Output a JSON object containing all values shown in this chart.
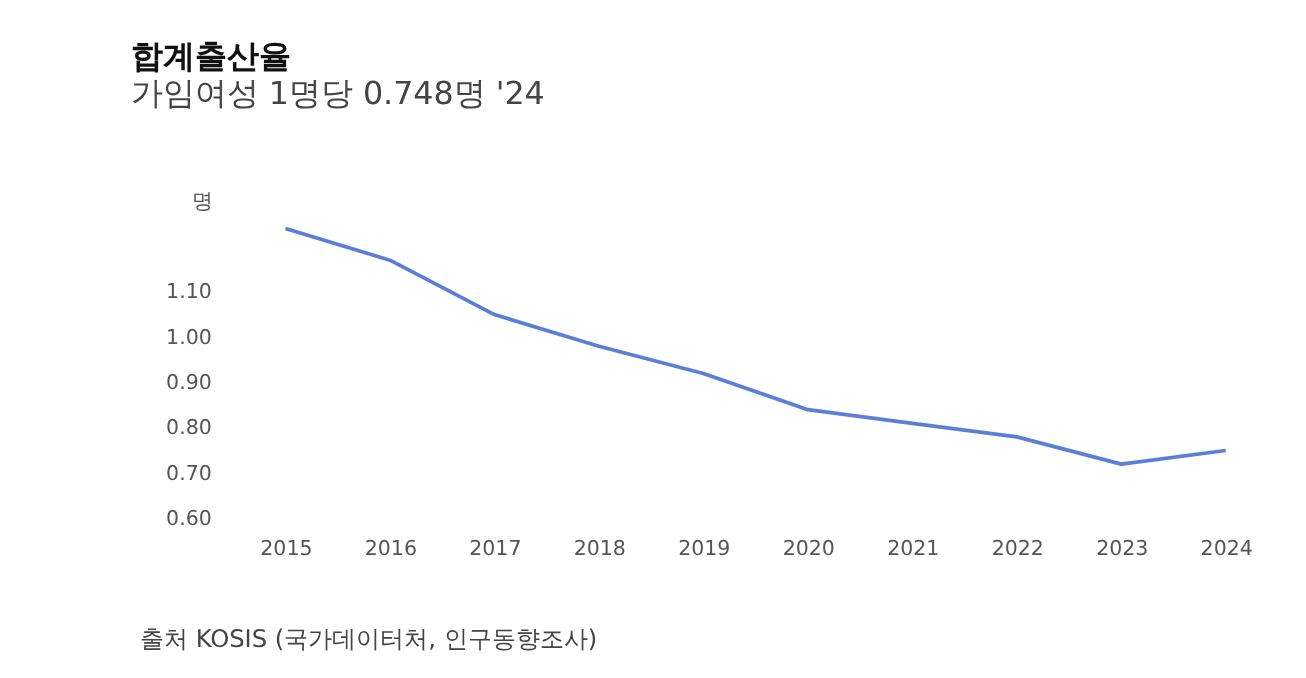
{
  "chart_data": {
    "type": "line",
    "title": "합계출산율",
    "subtitle": "가임여성 1명당 0.748명 '24",
    "categories": [
      "2015",
      "2016",
      "2017",
      "2018",
      "2019",
      "2020",
      "2021",
      "2022",
      "2023",
      "2024"
    ],
    "series": [
      {
        "color": "#5b7fd6",
        "values": [
          1.24,
          1.17,
          1.05,
          0.98,
          0.92,
          0.84,
          0.81,
          0.78,
          0.72,
          0.75
        ]
      }
    ],
    "ylim": [
      0.6,
      1.3
    ],
    "yticks": [
      {
        "value": 0.6,
        "label": "0.60"
      },
      {
        "value": 0.7,
        "label": "0.70"
      },
      {
        "value": 0.8,
        "label": "0.80"
      },
      {
        "value": 0.9,
        "label": "0.90"
      },
      {
        "value": 1.0,
        "label": "1.00"
      },
      {
        "value": 1.1,
        "label": "1.10"
      },
      {
        "value": 1.3,
        "label": "명"
      }
    ],
    "grid": false,
    "annotations": [
      "출처 KOSIS (국가데이터처, 인구동향조사)"
    ]
  }
}
